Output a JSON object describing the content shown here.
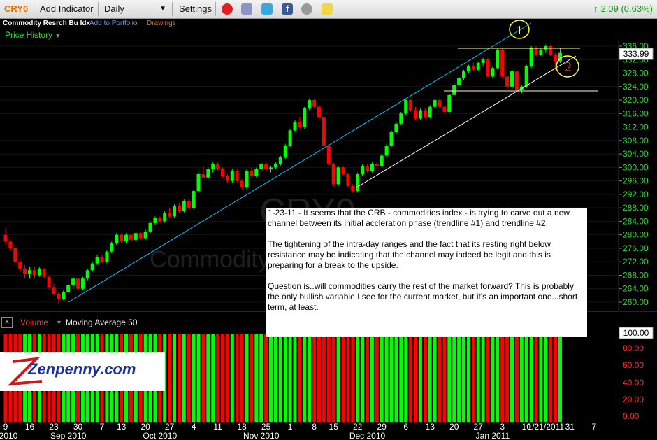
{
  "toolbar": {
    "symbol": "CRY0",
    "add_indicator": "Add Indicator",
    "interval": "Daily",
    "settings": "Settings",
    "change": "2.09 (0.63%)"
  },
  "subheader": {
    "name": "Commodity Resrch Bu Idx",
    "add_portfolio": "Add to Portfolio",
    "drawings": "Drawings"
  },
  "price_history_label": "Price History",
  "watermark": {
    "symbol": "CRY0",
    "name": "Commodity"
  },
  "annotations": {
    "circle1": "1",
    "circle2": "2"
  },
  "note": {
    "p1": "1-23-11 - It seems that the CRB - commodities index - is trying to carve out a new channel between its initial accleration phase (trendline #1) and trendline #2.",
    "p2": "The tightening of the intra-day ranges and the fact that its resting right below resistance may be indicating that the channel may indeed be legit and this is preparing for a break to the upside.",
    "p3": "Question is..will commodities carry the rest of the market forward? This is probably the only bullish variable I see for the current market, but it's an important one...short term, at least."
  },
  "volume_panel": {
    "close_glyph": "x",
    "title": "Volume",
    "indicator": "Moving Average 50",
    "y_ticks": [
      "100.00",
      "80.00",
      "60.00",
      "40.00",
      "20.00",
      "0.00"
    ]
  },
  "logo": {
    "text": "Zenpenny.com"
  },
  "colors": {
    "up": "#00ff00",
    "down": "#ff0000",
    "axis_text": "#2ddc2d",
    "trendline_upper": "#00c8ff",
    "trendline_lower": "#ffffff",
    "resistance": "#ffff99"
  },
  "chart_data": {
    "type": "candlestick",
    "title": "CRY0",
    "last_price_label": "333.99",
    "ylim": [
      258,
      338
    ],
    "y_ticks": [
      "336.00",
      "332.00",
      "328.00",
      "324.00",
      "320.00",
      "316.00",
      "312.00",
      "308.00",
      "304.00",
      "300.00",
      "296.00",
      "292.00",
      "288.00",
      "284.00",
      "280.00",
      "276.00",
      "272.00",
      "268.00",
      "264.00",
      "260.00"
    ],
    "x_ticks": [
      "9",
      "16",
      "23",
      "30",
      "7",
      "13",
      "20",
      "27",
      "4",
      "11",
      "18",
      "25",
      "1",
      "8",
      "15",
      "22",
      "29",
      "6",
      "13",
      "20",
      "27",
      "3",
      "10",
      "1/21/2011",
      "31",
      "7"
    ],
    "x_tick_idx": [
      0,
      5,
      10,
      15,
      20,
      24,
      29,
      34,
      39,
      44,
      49,
      54,
      59,
      64,
      68,
      73,
      78,
      83,
      88,
      93,
      98,
      103,
      108,
      112,
      117,
      122
    ],
    "month_labels": [
      "2010",
      "Sep 2010",
      "Oct 2010",
      "Nov 2010",
      "Dec 2010",
      "Jan 2011"
    ],
    "month_idx": [
      -1,
      13,
      32,
      53,
      75,
      101
    ],
    "candles": [
      [
        280.0,
        282.0,
        277.0,
        278.0
      ],
      [
        278.0,
        279.0,
        275.0,
        276.0
      ],
      [
        276.0,
        277.0,
        271.0,
        272.0
      ],
      [
        272.0,
        273.0,
        269.0,
        270.0
      ],
      [
        270.0,
        271.0,
        267.0,
        268.5
      ],
      [
        268.5,
        270.5,
        267.0,
        269.5
      ],
      [
        269.5,
        270.5,
        267.0,
        268.0
      ],
      [
        268.0,
        270.5,
        267.5,
        270.0
      ],
      [
        270.0,
        270.0,
        267.0,
        267.5
      ],
      [
        267.5,
        268.0,
        264.0,
        264.5
      ],
      [
        264.5,
        265.5,
        262.0,
        262.5
      ],
      [
        262.5,
        263.0,
        259.5,
        261.0
      ],
      [
        261.0,
        263.5,
        260.5,
        263.0
      ],
      [
        263.0,
        265.5,
        262.5,
        265.0
      ],
      [
        265.0,
        267.5,
        264.0,
        267.0
      ],
      [
        267.0,
        267.5,
        263.5,
        264.0
      ],
      [
        264.0,
        267.5,
        263.5,
        267.0
      ],
      [
        267.0,
        270.0,
        266.5,
        269.5
      ],
      [
        269.5,
        272.0,
        269.0,
        271.5
      ],
      [
        271.5,
        274.0,
        271.0,
        273.5
      ],
      [
        273.5,
        274.0,
        271.5,
        272.0
      ],
      [
        272.0,
        275.5,
        271.5,
        275.0
      ],
      [
        275.0,
        278.0,
        274.5,
        277.5
      ],
      [
        277.5,
        280.5,
        277.0,
        280.0
      ],
      [
        280.0,
        280.5,
        277.5,
        278.0
      ],
      [
        278.0,
        280.5,
        277.5,
        280.0
      ],
      [
        280.0,
        281.0,
        278.0,
        278.5
      ],
      [
        278.5,
        281.0,
        278.0,
        280.5
      ],
      [
        280.5,
        281.0,
        278.5,
        279.0
      ],
      [
        279.0,
        281.5,
        278.5,
        281.0
      ],
      [
        281.0,
        284.0,
        280.5,
        283.5
      ],
      [
        283.5,
        285.5,
        283.0,
        285.0
      ],
      [
        285.0,
        285.5,
        283.5,
        284.0
      ],
      [
        284.0,
        287.0,
        283.5,
        286.5
      ],
      [
        286.5,
        288.0,
        285.0,
        285.5
      ],
      [
        285.5,
        289.0,
        285.0,
        288.5
      ],
      [
        288.5,
        289.5,
        286.5,
        287.0
      ],
      [
        287.0,
        290.5,
        286.5,
        290.0
      ],
      [
        290.0,
        290.5,
        287.5,
        288.0
      ],
      [
        288.0,
        293.5,
        287.5,
        293.0
      ],
      [
        293.0,
        298.5,
        292.5,
        298.0
      ],
      [
        298.0,
        300.5,
        296.5,
        297.0
      ],
      [
        297.0,
        300.0,
        296.5,
        299.5
      ],
      [
        299.5,
        301.5,
        298.5,
        301.0
      ],
      [
        301.0,
        301.5,
        299.0,
        299.5
      ],
      [
        299.5,
        300.0,
        297.0,
        297.5
      ],
      [
        297.5,
        298.0,
        295.5,
        296.0
      ],
      [
        296.0,
        299.5,
        295.5,
        299.0
      ],
      [
        299.0,
        299.5,
        295.5,
        296.0
      ],
      [
        296.0,
        296.5,
        293.5,
        294.0
      ],
      [
        294.0,
        299.5,
        293.5,
        299.0
      ],
      [
        299.0,
        300.0,
        297.0,
        297.5
      ],
      [
        297.5,
        300.0,
        297.0,
        299.5
      ],
      [
        299.5,
        301.5,
        299.0,
        301.0
      ],
      [
        301.0,
        301.5,
        299.0,
        299.5
      ],
      [
        299.5,
        300.5,
        298.5,
        300.0
      ],
      [
        300.0,
        301.5,
        299.5,
        301.0
      ],
      [
        301.0,
        303.5,
        300.5,
        303.0
      ],
      [
        303.0,
        307.0,
        302.5,
        306.5
      ],
      [
        306.5,
        311.5,
        306.0,
        311.0
      ],
      [
        311.0,
        314.0,
        310.5,
        313.5
      ],
      [
        313.5,
        315.0,
        311.5,
        312.0
      ],
      [
        312.0,
        318.0,
        311.5,
        317.5
      ],
      [
        317.5,
        320.5,
        317.0,
        320.0
      ],
      [
        320.0,
        320.5,
        317.5,
        318.0
      ],
      [
        318.0,
        318.5,
        314.5,
        315.0
      ],
      [
        315.0,
        315.5,
        306.0,
        306.5
      ],
      [
        306.5,
        307.0,
        300.5,
        301.0
      ],
      [
        301.0,
        301.5,
        294.0,
        295.0
      ],
      [
        295.0,
        300.5,
        294.5,
        300.0
      ],
      [
        300.0,
        300.5,
        297.5,
        298.0
      ],
      [
        298.0,
        298.5,
        294.0,
        294.5
      ],
      [
        294.5,
        295.0,
        292.5,
        293.0
      ],
      [
        293.0,
        298.5,
        292.5,
        298.0
      ],
      [
        298.0,
        301.0,
        297.5,
        300.5
      ],
      [
        300.5,
        301.0,
        298.5,
        299.0
      ],
      [
        299.0,
        301.5,
        298.5,
        301.0
      ],
      [
        301.0,
        301.5,
        299.0,
        300.5
      ],
      [
        300.5,
        304.0,
        300.0,
        303.5
      ],
      [
        303.5,
        307.0,
        303.0,
        306.5
      ],
      [
        306.5,
        311.0,
        306.0,
        310.5
      ],
      [
        310.5,
        313.5,
        310.0,
        313.0
      ],
      [
        313.0,
        316.5,
        312.5,
        316.0
      ],
      [
        316.0,
        320.5,
        315.5,
        320.0
      ],
      [
        320.0,
        320.5,
        316.5,
        317.0
      ],
      [
        317.0,
        318.0,
        314.0,
        314.5
      ],
      [
        314.5,
        317.5,
        314.0,
        317.0
      ],
      [
        317.0,
        317.5,
        314.5,
        315.0
      ],
      [
        315.0,
        318.5,
        314.5,
        318.0
      ],
      [
        318.0,
        320.5,
        317.5,
        320.0
      ],
      [
        320.0,
        320.5,
        317.5,
        318.0
      ],
      [
        318.0,
        318.5,
        316.0,
        316.5
      ],
      [
        316.5,
        322.0,
        316.0,
        321.5
      ],
      [
        321.5,
        325.0,
        321.0,
        324.5
      ],
      [
        324.5,
        327.0,
        324.0,
        326.5
      ],
      [
        326.5,
        329.0,
        326.0,
        328.5
      ],
      [
        328.5,
        330.5,
        328.0,
        330.0
      ],
      [
        330.0,
        331.0,
        328.5,
        329.0
      ],
      [
        329.0,
        331.5,
        328.5,
        331.0
      ],
      [
        331.0,
        332.5,
        330.0,
        332.0
      ],
      [
        332.0,
        332.5,
        326.5,
        327.0
      ],
      [
        327.0,
        330.0,
        326.5,
        329.5
      ],
      [
        329.5,
        335.5,
        329.0,
        335.0
      ],
      [
        335.0,
        335.5,
        326.5,
        327.0
      ],
      [
        327.0,
        328.5,
        323.5,
        324.0
      ],
      [
        324.0,
        329.0,
        323.5,
        328.5
      ],
      [
        328.5,
        329.0,
        322.5,
        323.0
      ],
      [
        323.0,
        324.5,
        322.0,
        324.0
      ],
      [
        324.0,
        330.5,
        323.5,
        330.0
      ],
      [
        330.0,
        336.0,
        329.5,
        335.5
      ],
      [
        335.5,
        336.0,
        333.0,
        333.5
      ],
      [
        333.5,
        335.5,
        333.0,
        335.0
      ],
      [
        335.0,
        336.5,
        334.0,
        336.0
      ],
      [
        336.0,
        336.5,
        333.0,
        333.5
      ],
      [
        333.5,
        334.0,
        329.0,
        331.5
      ],
      [
        331.5,
        335.5,
        331.0,
        334.0
      ]
    ],
    "volume": [
      "d",
      "d",
      "d",
      "d",
      "u",
      "u",
      "d",
      "u",
      "d",
      "d",
      "d",
      "d",
      "u",
      "u",
      "u",
      "d",
      "u",
      "u",
      "u",
      "u",
      "d",
      "u",
      "u",
      "u",
      "d",
      "u",
      "d",
      "u",
      "d",
      "u",
      "u",
      "u",
      "d",
      "u",
      "d",
      "u",
      "d",
      "u",
      "d",
      "u",
      "u",
      "d",
      "u",
      "u",
      "d",
      "d",
      "d",
      "u",
      "d",
      "d",
      "u",
      "d",
      "u",
      "u",
      "d",
      "u",
      "u",
      "u",
      "u",
      "u",
      "u",
      "d",
      "u",
      "u",
      "d",
      "d",
      "d",
      "d",
      "d",
      "u",
      "d",
      "d",
      "d",
      "u",
      "u",
      "d",
      "u",
      "d",
      "u",
      "u",
      "u",
      "u",
      "u",
      "u",
      "d",
      "d",
      "u",
      "d",
      "u",
      "u",
      "d",
      "d",
      "u",
      "u",
      "u",
      "u",
      "u",
      "d",
      "u",
      "u",
      "d",
      "u",
      "u",
      "d",
      "d",
      "u",
      "d",
      "u",
      "u",
      "u",
      "d",
      "u",
      "u",
      "d",
      "d",
      "u"
    ]
  }
}
